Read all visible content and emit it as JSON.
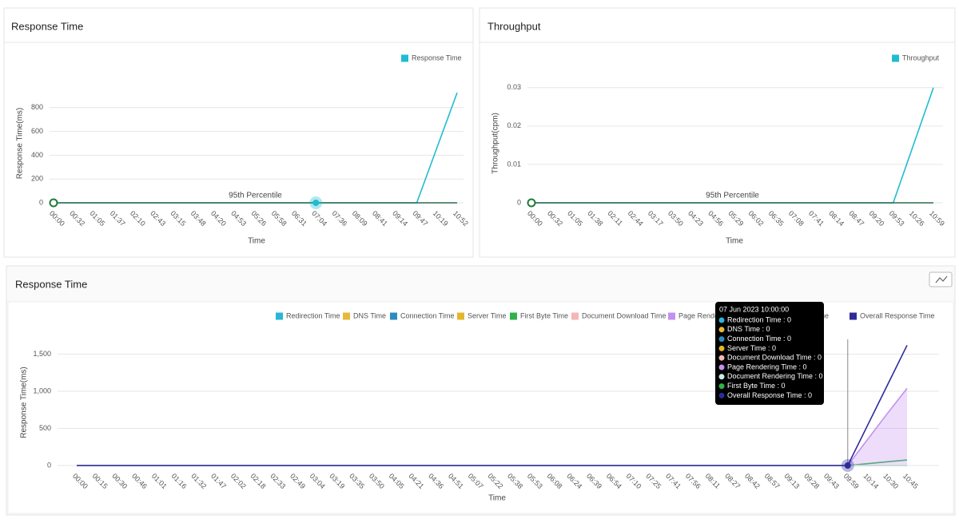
{
  "chart_data": [
    {
      "type": "line",
      "title": "Response Time",
      "x_label": "Time",
      "y_label": "Response Time(ms)",
      "categories": [
        "00:00",
        "00:32",
        "01:05",
        "01:37",
        "02:10",
        "02:43",
        "03:15",
        "03:48",
        "04:20",
        "04:53",
        "05:26",
        "05:58",
        "06:31",
        "07:04",
        "07:36",
        "08:09",
        "08:41",
        "09:14",
        "09:47",
        "10:19",
        "10:52"
      ],
      "series": [
        {
          "name": "Response Time",
          "color": "#1fbcd2",
          "values": [
            0,
            0,
            0,
            0,
            0,
            0,
            0,
            0,
            0,
            0,
            0,
            0,
            0,
            0,
            0,
            0,
            0,
            0,
            0,
            463,
            925
          ]
        }
      ],
      "percentile": {
        "label": "95th Percentile",
        "value": 0,
        "color": "#2e6b4f"
      },
      "ylim": [
        0,
        1000
      ],
      "yticks": [
        0,
        200,
        400,
        600,
        800
      ],
      "grid": true
    },
    {
      "type": "line",
      "title": "Throughput",
      "x_label": "Time",
      "y_label": "Throughput(cpm)",
      "categories": [
        "00:00",
        "00:32",
        "01:05",
        "01:38",
        "02:11",
        "02:44",
        "03:17",
        "03:50",
        "04:23",
        "04:56",
        "05:29",
        "06:02",
        "06:35",
        "07:08",
        "07:41",
        "08:14",
        "08:47",
        "09:20",
        "09:53",
        "10:26",
        "10:59"
      ],
      "series": [
        {
          "name": "Throughput",
          "color": "#1fbcd2",
          "values": [
            0,
            0,
            0,
            0,
            0,
            0,
            0,
            0,
            0,
            0,
            0,
            0,
            0,
            0,
            0,
            0,
            0,
            0,
            0,
            0.015,
            0.03
          ]
        }
      ],
      "percentile": {
        "label": "95th Percentile",
        "value": 0,
        "color": "#2e6b4f"
      },
      "ylim": [
        0,
        0.031
      ],
      "yticks": [
        0,
        0.01,
        0.02,
        0.03
      ],
      "grid": true
    },
    {
      "type": "line",
      "title": "Response Time",
      "x_label": "Time",
      "y_label": "Response Time(ms)",
      "categories": [
        "00:00",
        "00:15",
        "00:30",
        "00:46",
        "01:01",
        "01:16",
        "01:32",
        "01:47",
        "02:02",
        "02:18",
        "02:33",
        "02:49",
        "03:04",
        "03:19",
        "03:35",
        "03:50",
        "04:05",
        "04:21",
        "04:36",
        "04:51",
        "05:07",
        "05:22",
        "05:38",
        "05:53",
        "06:08",
        "06:24",
        "06:39",
        "06:54",
        "07:10",
        "07:25",
        "07:41",
        "07:56",
        "08:11",
        "08:27",
        "08:42",
        "08:57",
        "09:13",
        "09:28",
        "09:43",
        "09:59",
        "10:14",
        "10:30",
        "10:45"
      ],
      "series": [
        {
          "name": "Redirection Time",
          "color": "#29b6d8",
          "values": [
            0,
            0,
            0,
            0,
            0,
            0,
            0,
            0,
            0,
            0,
            0,
            0,
            0,
            0,
            0,
            0,
            0,
            0,
            0,
            0,
            0,
            0,
            0,
            0,
            0,
            0,
            0,
            0,
            0,
            0,
            0,
            0,
            0,
            0,
            0,
            0,
            0,
            0,
            0,
            0,
            0,
            0,
            0
          ]
        },
        {
          "name": "DNS Time",
          "color": "#e8b83a",
          "values": [
            0,
            0,
            0,
            0,
            0,
            0,
            0,
            0,
            0,
            0,
            0,
            0,
            0,
            0,
            0,
            0,
            0,
            0,
            0,
            0,
            0,
            0,
            0,
            0,
            0,
            0,
            0,
            0,
            0,
            0,
            0,
            0,
            0,
            0,
            0,
            0,
            0,
            0,
            0,
            0,
            0,
            0,
            0
          ]
        },
        {
          "name": "Connection Time",
          "color": "#2e8bc0",
          "values": [
            0,
            0,
            0,
            0,
            0,
            0,
            0,
            0,
            0,
            0,
            0,
            0,
            0,
            0,
            0,
            0,
            0,
            0,
            0,
            0,
            0,
            0,
            0,
            0,
            0,
            0,
            0,
            0,
            0,
            0,
            0,
            0,
            0,
            0,
            0,
            0,
            0,
            0,
            0,
            0,
            0,
            0,
            0
          ]
        },
        {
          "name": "Server Time",
          "color": "#e3b72a",
          "values": [
            0,
            0,
            0,
            0,
            0,
            0,
            0,
            0,
            0,
            0,
            0,
            0,
            0,
            0,
            0,
            0,
            0,
            0,
            0,
            0,
            0,
            0,
            0,
            0,
            0,
            0,
            0,
            0,
            0,
            0,
            0,
            0,
            0,
            0,
            0,
            0,
            0,
            0,
            0,
            0,
            0,
            0,
            0
          ]
        },
        {
          "name": "First Byte Time",
          "color": "#2db34a",
          "values": [
            0,
            0,
            0,
            0,
            0,
            0,
            0,
            0,
            0,
            0,
            0,
            0,
            0,
            0,
            0,
            0,
            0,
            0,
            0,
            0,
            0,
            0,
            0,
            0,
            0,
            0,
            0,
            0,
            0,
            0,
            0,
            0,
            0,
            0,
            0,
            0,
            0,
            0,
            0,
            0,
            25,
            50,
            75
          ]
        },
        {
          "name": "Document Download Time",
          "color": "#f4b6b6",
          "values": [
            0,
            0,
            0,
            0,
            0,
            0,
            0,
            0,
            0,
            0,
            0,
            0,
            0,
            0,
            0,
            0,
            0,
            0,
            0,
            0,
            0,
            0,
            0,
            0,
            0,
            0,
            0,
            0,
            0,
            0,
            0,
            0,
            0,
            0,
            0,
            0,
            0,
            0,
            0,
            0,
            0,
            0,
            0
          ]
        },
        {
          "name": "Page Rendering Time",
          "color": "#c490f0",
          "area": true,
          "values": [
            0,
            0,
            0,
            0,
            0,
            0,
            0,
            0,
            0,
            0,
            0,
            0,
            0,
            0,
            0,
            0,
            0,
            0,
            0,
            0,
            0,
            0,
            0,
            0,
            0,
            0,
            0,
            0,
            0,
            0,
            0,
            0,
            0,
            0,
            0,
            0,
            0,
            0,
            0,
            0,
            350,
            700,
            1040
          ]
        },
        {
          "name": "Document Rendering Time",
          "color": "#c9ecec",
          "values": [
            0,
            0,
            0,
            0,
            0,
            0,
            0,
            0,
            0,
            0,
            0,
            0,
            0,
            0,
            0,
            0,
            0,
            0,
            0,
            0,
            0,
            0,
            0,
            0,
            0,
            0,
            0,
            0,
            0,
            0,
            0,
            0,
            0,
            0,
            0,
            0,
            0,
            0,
            0,
            0,
            0,
            0,
            0
          ]
        },
        {
          "name": "Overall Response Time",
          "color": "#2d2a9a",
          "values": [
            0,
            0,
            0,
            0,
            0,
            0,
            0,
            0,
            0,
            0,
            0,
            0,
            0,
            0,
            0,
            0,
            0,
            0,
            0,
            0,
            0,
            0,
            0,
            0,
            0,
            0,
            0,
            0,
            0,
            0,
            0,
            0,
            0,
            0,
            0,
            0,
            0,
            0,
            0,
            0,
            540,
            1080,
            1620
          ]
        }
      ],
      "ylim": [
        0,
        1700
      ],
      "yticks": [
        0,
        500,
        {
          "value": 1000,
          "label": "1,000"
        },
        {
          "value": 1500,
          "label": "1,500"
        }
      ],
      "grid": true,
      "tooltip": {
        "title": "07 Jun 2023 10:00:00",
        "items": [
          {
            "label": "Redirection Time : 0",
            "color": "#29b6d8"
          },
          {
            "label": "DNS Time : 0",
            "color": "#e8b83a"
          },
          {
            "label": "Connection Time : 0",
            "color": "#2e8bc0"
          },
          {
            "label": "Server Time : 0",
            "color": "#e3b72a"
          },
          {
            "label": "Document Download Time : 0",
            "color": "#f4b6b6"
          },
          {
            "label": "Page Rendering Time : 0",
            "color": "#c490f0"
          },
          {
            "label": "Document Rendering Time : 0",
            "color": "#c9ecec"
          },
          {
            "label": "First Byte Time : 0",
            "color": "#2db34a"
          },
          {
            "label": "Overall Response Time : 0",
            "color": "#2d2a9a"
          }
        ]
      }
    }
  ]
}
